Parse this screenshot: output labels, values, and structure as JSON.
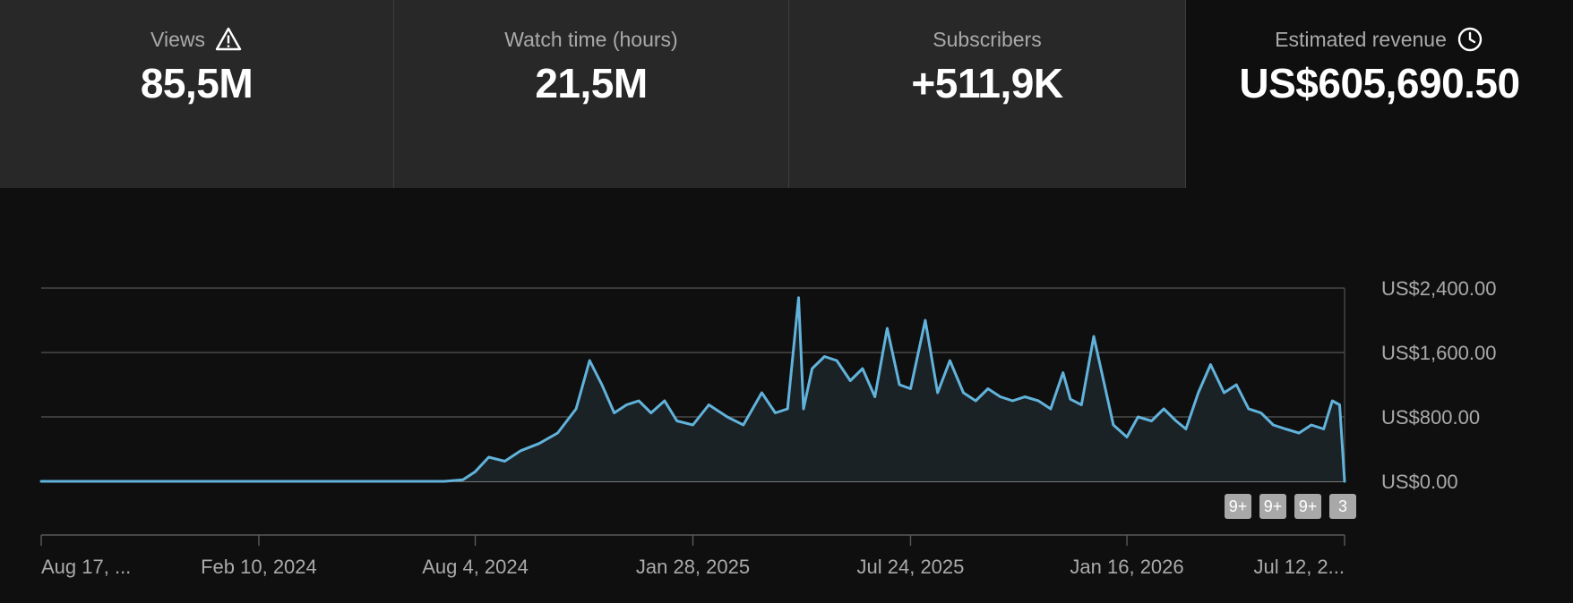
{
  "metrics": [
    {
      "label": "Views",
      "value": "85,5M",
      "icon": "warning-icon"
    },
    {
      "label": "Watch time (hours)",
      "value": "21,5M"
    },
    {
      "label": "Subscribers",
      "value": "+511,9K"
    },
    {
      "label": "Estimated revenue",
      "value": "US$605,690.50",
      "icon": "clock-icon",
      "selected": true
    }
  ],
  "chart_data": {
    "type": "area",
    "y_tick_labels": [
      "US$2,400.00",
      "US$1,600.00",
      "US$800.00",
      "US$0.00"
    ],
    "y_ticks": [
      2400,
      1600,
      800,
      0
    ],
    "ylim": [
      0,
      2400
    ],
    "x_tick_labels": [
      "Aug 17, ...",
      "Feb 10, 2024",
      "Aug 4, 2024",
      "Jan 28, 2025",
      "Jul 24, 2025",
      "Jan 16, 2026",
      "Jul 12, 2..."
    ],
    "x_ticks": [
      "2023-08-17",
      "2024-02-10",
      "2024-08-04",
      "2025-01-28",
      "2025-07-24",
      "2026-01-16",
      "2026-07-12"
    ],
    "xlim": [
      "2023-08-17",
      "2026-07-12"
    ],
    "grid": true,
    "series": [
      {
        "color": "#61b3dc",
        "fill": "#1b2226",
        "x": [
          "2023-08-17",
          "2024-07-10",
          "2024-07-25",
          "2024-08-04",
          "2024-08-15",
          "2024-08-28",
          "2024-09-10",
          "2024-09-25",
          "2024-10-10",
          "2024-10-25",
          "2024-11-05",
          "2024-11-15",
          "2024-11-25",
          "2024-12-05",
          "2024-12-15",
          "2024-12-25",
          "2025-01-05",
          "2025-01-15",
          "2025-01-28",
          "2025-02-10",
          "2025-02-25",
          "2025-03-10",
          "2025-03-25",
          "2025-04-05",
          "2025-04-15",
          "2025-04-24",
          "2025-04-28",
          "2025-05-05",
          "2025-05-15",
          "2025-05-25",
          "2025-06-05",
          "2025-06-15",
          "2025-06-25",
          "2025-07-05",
          "2025-07-15",
          "2025-07-24",
          "2025-08-05",
          "2025-08-15",
          "2025-08-25",
          "2025-09-05",
          "2025-09-15",
          "2025-09-25",
          "2025-10-05",
          "2025-10-15",
          "2025-10-25",
          "2025-11-05",
          "2025-11-15",
          "2025-11-25",
          "2025-12-01",
          "2025-12-10",
          "2025-12-20",
          "2026-01-05",
          "2026-01-16",
          "2026-01-25",
          "2026-02-05",
          "2026-02-15",
          "2026-02-25",
          "2026-03-05",
          "2026-03-15",
          "2026-03-25",
          "2026-04-05",
          "2026-04-15",
          "2026-04-25",
          "2026-05-05",
          "2026-05-15",
          "2026-05-25",
          "2026-06-05",
          "2026-06-15",
          "2026-06-25",
          "2026-07-02",
          "2026-07-08",
          "2026-07-12"
        ],
        "values": [
          0,
          0,
          20,
          120,
          300,
          250,
          380,
          470,
          600,
          900,
          1500,
          1200,
          850,
          950,
          1000,
          850,
          1000,
          750,
          700,
          950,
          800,
          700,
          1100,
          850,
          900,
          2280,
          900,
          1400,
          1550,
          1500,
          1250,
          1400,
          1050,
          1900,
          1200,
          1150,
          2000,
          1100,
          1500,
          1100,
          1000,
          1150,
          1050,
          1000,
          1050,
          1000,
          900,
          1350,
          1020,
          950,
          1800,
          700,
          550,
          800,
          750,
          900,
          750,
          650,
          1100,
          1450,
          1100,
          1200,
          900,
          850,
          700,
          650,
          600,
          700,
          650,
          1000,
          950,
          0
        ]
      }
    ],
    "badges": [
      "9+",
      "9+",
      "9+",
      "3"
    ]
  }
}
